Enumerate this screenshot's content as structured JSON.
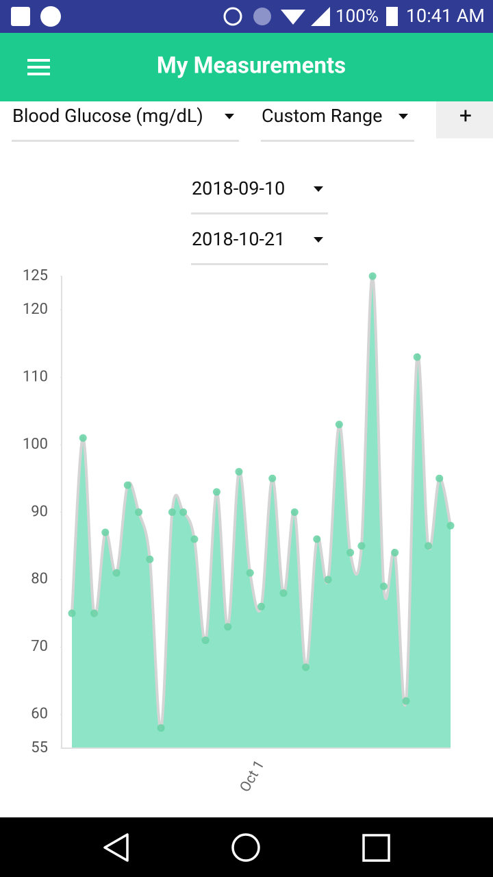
{
  "status_bar": {
    "battery": "100%",
    "time": "10:41 AM"
  },
  "app_bar": {
    "title": "My Measurements"
  },
  "filters": {
    "measure": "Blood Glucose (mg/dL)",
    "range": "Custom Range",
    "add": "+"
  },
  "date_range": {
    "start": "2018-09-10",
    "end": "2018-10-21"
  },
  "chart_data": {
    "type": "area",
    "categories": [
      null,
      null,
      null,
      null,
      null,
      null,
      null,
      null,
      null,
      null,
      null,
      null,
      null,
      null,
      null,
      null,
      null,
      "Oct 1",
      null,
      null,
      null,
      null,
      null,
      null,
      null,
      null,
      null,
      null,
      null,
      null,
      null,
      null,
      null,
      null,
      null
    ],
    "values": [
      75,
      101,
      75,
      87,
      81,
      94,
      90,
      83,
      58,
      90,
      90,
      86,
      71,
      93,
      73,
      96,
      81,
      76,
      95,
      78,
      90,
      67,
      86,
      80,
      103,
      84,
      85,
      125,
      79,
      84,
      62,
      113,
      85,
      95,
      88
    ],
    "color": "#8ee4c7",
    "line_color": "#d4d4d4",
    "marker_color": "#66d2a3",
    "ylim": [
      55,
      125
    ],
    "yticks": [
      55,
      60,
      70,
      80,
      90,
      100,
      110,
      120,
      125
    ]
  }
}
